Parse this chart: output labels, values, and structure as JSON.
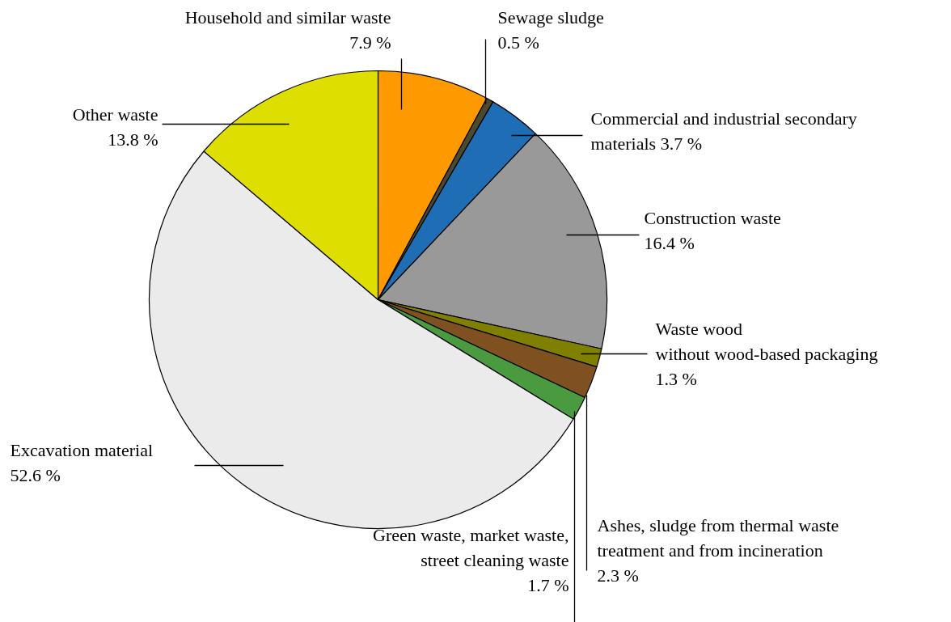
{
  "chart_data": {
    "type": "pie",
    "categories": [
      "Household and similar waste",
      "Sewage sludge",
      "Commercial and industrial secondary\nmaterials",
      "Construction waste",
      "Waste wood\nwithout wood-based packaging",
      "Ashes, sludge from thermal waste\ntreatment and from incineration",
      "Green waste, market waste,\nstreet cleaning waste",
      "Excavation material",
      "Other waste"
    ],
    "values": [
      7.9,
      0.5,
      3.7,
      16.4,
      1.3,
      2.3,
      1.7,
      52.6,
      13.8
    ],
    "value_labels": [
      "7.9 %",
      "0.5 %",
      "3.7 %",
      "16.4 %",
      "1.3 %",
      "2.3 %",
      "1.7 %",
      "52.6 %",
      "13.8 %"
    ],
    "colors": [
      "#ff9900",
      "#4a4a30",
      "#1f6db5",
      "#999999",
      "#808000",
      "#7f5020",
      "#4a9a40",
      "#ebebeb",
      "#dede00"
    ]
  }
}
